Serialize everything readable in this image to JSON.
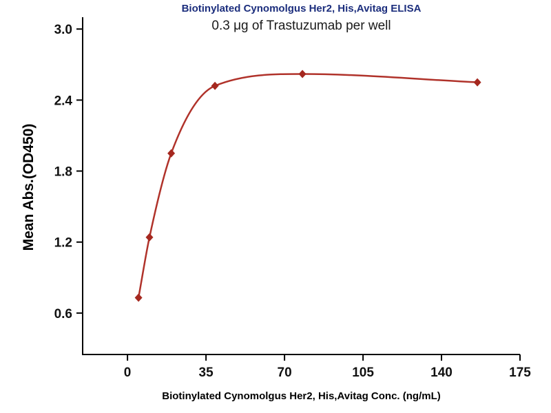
{
  "chart_data": {
    "type": "scatter",
    "title": "Biotinylated Cynomolgus Her2, His,Avitag ELISA",
    "subtitle": "0.3 μg of Trastuzumab per well",
    "xlabel": "Biotinylated Cynomolgus Her2, His,Avitag Conc. (ng/mL)",
    "ylabel": "Mean Abs.(OD450)",
    "x": [
      4.9,
      9.8,
      19.5,
      39,
      78,
      156
    ],
    "y": [
      0.73,
      1.24,
      1.95,
      2.52,
      2.62,
      2.55
    ],
    "xlim": [
      -20,
      175
    ],
    "ylim": [
      0.25,
      3.1
    ],
    "xticks": [
      0,
      35,
      70,
      105,
      140,
      175
    ],
    "xtick_labels": [
      "0",
      "35",
      "70",
      "105",
      "140",
      "175"
    ],
    "yticks": [
      0.6,
      1.2,
      1.8,
      2.4,
      3.0
    ],
    "ytick_labels": [
      "0.6",
      "1.2",
      "1.8",
      "2.4",
      "3.0"
    ],
    "marker": "diamond",
    "curve_fit": "sigmoidal dose-response fit through points",
    "grid": false,
    "legend": "none",
    "colors": {
      "curve": "#b0322a",
      "marker": "#a5281f",
      "axis": "#000000",
      "tick_text": "#111111",
      "title": "#1c2e7d",
      "subtitle": "#1a1a1a"
    }
  }
}
